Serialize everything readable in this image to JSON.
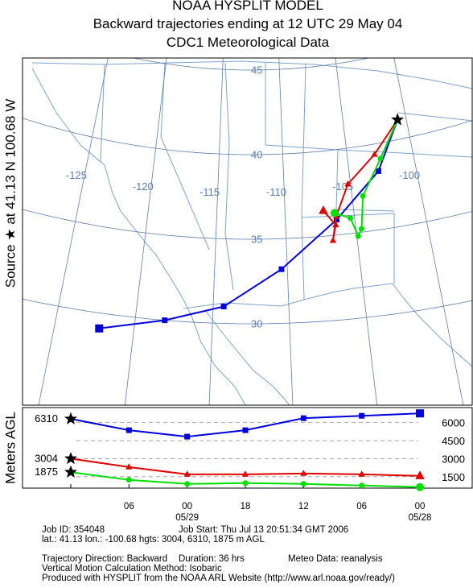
{
  "chart_data": {
    "type": "trajectory",
    "title": "NOAA HYSPLIT MODEL",
    "subtitle": "Backward trajectories ending at 12 UTC 29 May 04",
    "data_source": "CDC1 Meteorological Data",
    "source_label": "Source ★ at  41.13 N  100.68 W",
    "height_axis_label": "Meters AGL",
    "map": {
      "lon_lines": [
        -125,
        -120,
        -115,
        -110,
        -105,
        -100
      ],
      "lat_lines": [
        30,
        35,
        40,
        45
      ],
      "source": {
        "lat": 41.13,
        "lon": -100.68
      }
    },
    "categories": [
      null,
      "06",
      "00",
      "18",
      "12",
      "06",
      "00"
    ],
    "dates": [
      null,
      null,
      "05/29",
      null,
      null,
      null,
      "05/28"
    ],
    "ylim": [
      550,
      7250
    ],
    "yticks": [
      1500,
      3000,
      4500,
      6000
    ],
    "series": [
      {
        "color": "#0000e0",
        "marker": "square",
        "lat": [
          41.13,
          38.4,
          35.9,
          33.2,
          31.0,
          30.0,
          29.1
        ],
        "lon": [
          -100.68,
          -102.8,
          -106.3,
          -110.4,
          -114.3,
          -118.1,
          -122.2
        ],
        "heights": [
          6310,
          5367,
          4833,
          5367,
          6367,
          6567,
          6767
        ]
      },
      {
        "color": "#e00000",
        "marker": "triangle",
        "lat": [
          41.13,
          39.4,
          37.9,
          36.1,
          34.7,
          35.6,
          36.5
        ],
        "lon": [
          -100.68,
          -102.9,
          -105.2,
          -106.3,
          -106.7,
          -106.4,
          -107.2
        ],
        "heights": [
          3004,
          2300,
          1700,
          1700,
          1767,
          1700,
          1567
        ]
      },
      {
        "color": "#00e000",
        "marker": "circle",
        "lat": [
          41.13,
          39.1,
          37.1,
          35.2,
          34.8,
          35.9,
          36.3
        ],
        "lon": [
          -100.68,
          -102.5,
          -104.2,
          -104.6,
          -104.9,
          -105.3,
          -106.4
        ],
        "heights": [
          1875,
          1233,
          900,
          967,
          900,
          767,
          633
        ]
      }
    ],
    "info": [
      "Job ID: 354048",
      "Job Start: Thu Jul 13 20:51:34 GMT 2006",
      "lat.: 41.13   lon.: -100.68   hgts: 3004, 6310, 1875 m AGL",
      "Trajectory Direction: Backward",
      "Duration: 36 hrs",
      "Meteo Data: reanalysis",
      "Vertical Motion Calculation Method: Isobaric",
      "Produced with HYSPLIT from the NOAA ARL Website (http://www.arl.noaa.gov/ready/)"
    ]
  }
}
